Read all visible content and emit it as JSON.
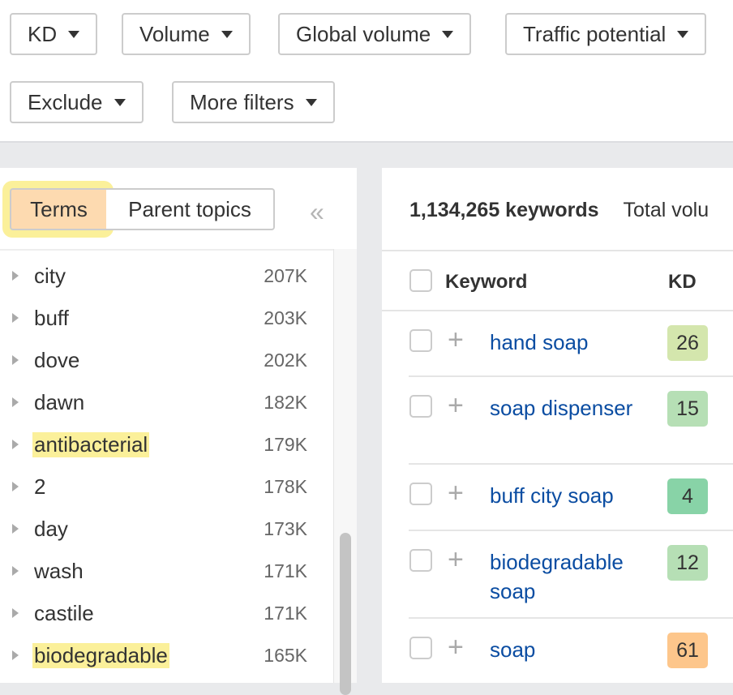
{
  "filters": [
    {
      "label": "KD"
    },
    {
      "label": "Volume"
    },
    {
      "label": "Global volume"
    },
    {
      "label": "Traffic potential"
    },
    {
      "label": "Exclude"
    },
    {
      "label": "More filters"
    }
  ],
  "left_panel": {
    "tabs": [
      {
        "label": "Terms",
        "active": true
      },
      {
        "label": "Parent topics",
        "active": false
      }
    ],
    "collapse_icon": "double-chevron-left-icon",
    "terms": [
      {
        "term": "city",
        "count": "207K",
        "highlighted": false
      },
      {
        "term": "buff",
        "count": "203K",
        "highlighted": false
      },
      {
        "term": "dove",
        "count": "202K",
        "highlighted": false
      },
      {
        "term": "dawn",
        "count": "182K",
        "highlighted": false
      },
      {
        "term": "antibacterial",
        "count": "179K",
        "highlighted": true
      },
      {
        "term": "2",
        "count": "178K",
        "highlighted": false
      },
      {
        "term": "day",
        "count": "173K",
        "highlighted": false
      },
      {
        "term": "wash",
        "count": "171K",
        "highlighted": false
      },
      {
        "term": "castile",
        "count": "171K",
        "highlighted": false
      },
      {
        "term": "biodegradable",
        "count": "165K",
        "highlighted": true
      }
    ]
  },
  "main": {
    "keyword_count": "1,134,265 keywords",
    "total_volume_label": "Total volu",
    "columns": {
      "keyword": "Keyword",
      "kd": "KD"
    },
    "rows": [
      {
        "keyword": "hand soap",
        "kd": "26",
        "kd_color": "#d4e6ad"
      },
      {
        "keyword": "soap dispenser",
        "kd": "15",
        "kd_color": "#b6dfb5"
      },
      {
        "keyword": "buff city soap",
        "kd": "4",
        "kd_color": "#88d3a7"
      },
      {
        "keyword": "biodegradable soap",
        "kd": "12",
        "kd_color": "#b6dfb5"
      },
      {
        "keyword": "soap",
        "kd": "61",
        "kd_color": "#fdc68b"
      }
    ]
  },
  "colors": {
    "highlight": "#fbf09a",
    "active_tab": "#fddab0",
    "link": "#0b4da2"
  }
}
